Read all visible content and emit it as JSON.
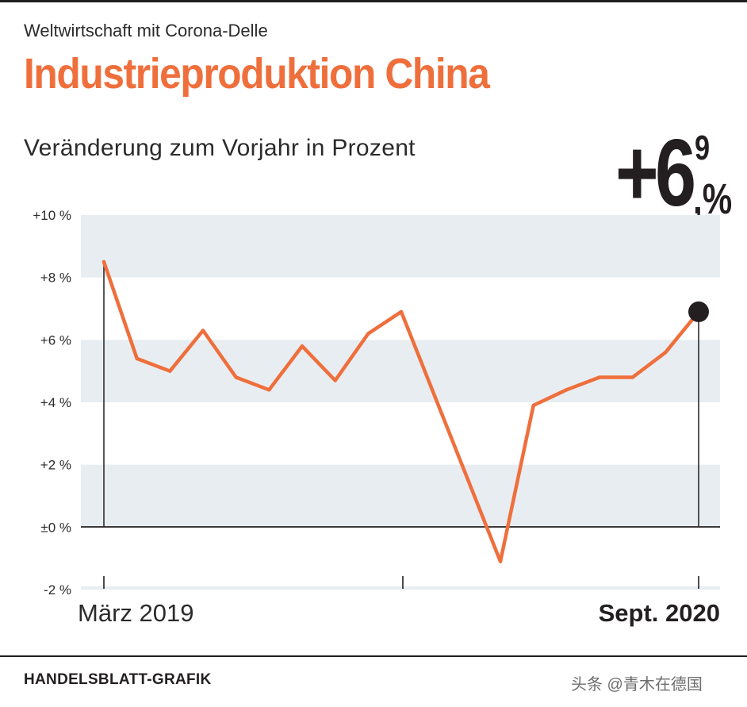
{
  "header": {
    "kicker": "Weltwirtschaft mit Corona-Delle",
    "title": "Industrieproduktion China",
    "subtitle": "Veränderung zum Vorjahr in Prozent"
  },
  "callout": {
    "sign_int": "+6",
    "decimal": "9",
    "percent": ",%"
  },
  "footer": {
    "credit": "HANDELSBLATT-GRAFIK",
    "watermark": "头条 @青木在德国"
  },
  "colors": {
    "line": "#ef6f3c",
    "band": "#e8edf1",
    "text": "#231f20"
  },
  "chart_data": {
    "type": "line",
    "title": "Industrieproduktion China",
    "ylabel": "Veränderung zum Vorjahr in Prozent",
    "ylim": [
      -2,
      10
    ],
    "yticks": [
      10,
      8,
      6,
      4,
      2,
      0,
      -2
    ],
    "ytick_labels": [
      "+10 %",
      "+8 %",
      "+6 %",
      "+4 %",
      "+2 %",
      "±0 %",
      "-2 %"
    ],
    "x_start_label": "März 2019",
    "x_end_label": "Sept. 2020",
    "series": [
      {
        "name": "Industrieproduktion China",
        "values": [
          8.5,
          5.4,
          5.0,
          6.3,
          4.8,
          4.4,
          5.8,
          4.7,
          6.2,
          6.9,
          null,
          null,
          -1.1,
          3.9,
          4.4,
          4.8,
          4.8,
          5.6,
          6.9
        ]
      }
    ],
    "highlight_value": 6.9
  }
}
